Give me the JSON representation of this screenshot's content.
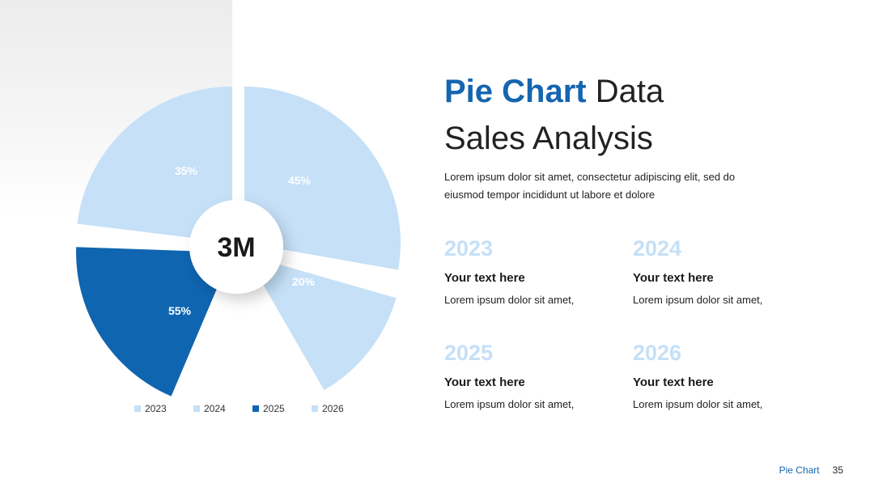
{
  "chart_data": {
    "type": "pie",
    "categories": [
      "2023",
      "2024",
      "2025",
      "2026"
    ],
    "labels": [
      "35%",
      "45%",
      "55%",
      "20%"
    ],
    "center_label": "3M",
    "legend_position": "bottom",
    "colors": [
      "#c5e0f7",
      "#c5e0f7",
      "#0f65b0",
      "#c5e0f7"
    ]
  },
  "title": {
    "accent": "Pie Chart",
    "rest_line1": "Data",
    "line2": "Sales Analysis"
  },
  "description": "Lorem ipsum dolor sit amet, consectetur adipiscing elit, sed do eiusmod tempor incididunt ut labore et dolore",
  "cards": [
    {
      "year": "2023",
      "heading": "Your text here",
      "text": "Lorem ipsum dolor sit amet,"
    },
    {
      "year": "2024",
      "heading": "Your text here",
      "text": "Lorem ipsum dolor sit amet,"
    },
    {
      "year": "2025",
      "heading": "Your text here",
      "text": "Lorem ipsum dolor sit amet,"
    },
    {
      "year": "2026",
      "heading": "Your text here",
      "text": "Lorem ipsum dolor sit amet,"
    }
  ],
  "footer": {
    "title": "Pie Chart",
    "page": "35"
  }
}
